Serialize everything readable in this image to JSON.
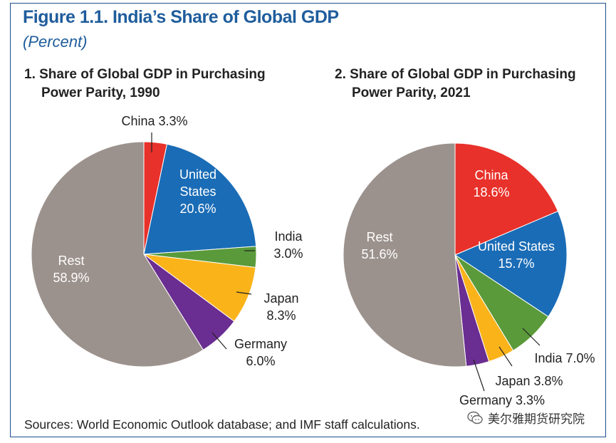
{
  "figure": {
    "title": "Figure 1.1. India’s Share of Global GDP",
    "subtitle": "(Percent)",
    "sources": "Sources: World Economic Outlook database; and IMF staff calculations.",
    "watermark": "美尔雅期货研究院"
  },
  "colors": {
    "china": "#e8312a",
    "united_states": "#1a6cb6",
    "india": "#5a9a3a",
    "japan": "#fbb31a",
    "germany": "#6a2d91",
    "rest": "#9c928d",
    "title": "#1f5d9c"
  },
  "chart_data": [
    {
      "type": "pie",
      "title": "1. Share of Global GDP in Purchasing Power Parity, 1990",
      "title_lines": [
        "1. Share of Global GDP in Purchasing",
        "Power Parity, 1990"
      ],
      "slices": [
        {
          "name": "China",
          "value": 3.3,
          "label_lines": [
            "China 3.3%"
          ],
          "color": "#e8312a"
        },
        {
          "name": "United States",
          "value": 20.6,
          "label_lines": [
            "United",
            "States",
            "20.6%"
          ],
          "color": "#1a6cb6"
        },
        {
          "name": "India",
          "value": 3.0,
          "label_lines": [
            "India",
            "3.0%"
          ],
          "color": "#5a9a3a"
        },
        {
          "name": "Japan",
          "value": 8.3,
          "label_lines": [
            "Japan",
            "8.3%"
          ],
          "color": "#fbb31a"
        },
        {
          "name": "Germany",
          "value": 6.0,
          "label_lines": [
            "Germany",
            "6.0%"
          ],
          "color": "#6a2d91"
        },
        {
          "name": "Rest",
          "value": 58.9,
          "label_lines": [
            "Rest",
            "58.9%"
          ],
          "color": "#9c928d"
        }
      ]
    },
    {
      "type": "pie",
      "title": "2. Share of Global GDP in Purchasing Power Parity, 2021",
      "title_lines": [
        "2. Share of Global GDP in Purchasing",
        "Power Parity, 2021"
      ],
      "slices": [
        {
          "name": "China",
          "value": 18.6,
          "label_lines": [
            "China",
            "18.6%"
          ],
          "color": "#e8312a"
        },
        {
          "name": "United States",
          "value": 15.7,
          "label_lines": [
            "United States",
            "15.7%"
          ],
          "color": "#1a6cb6"
        },
        {
          "name": "India",
          "value": 7.0,
          "label_lines": [
            "India 7.0%"
          ],
          "color": "#5a9a3a"
        },
        {
          "name": "Japan",
          "value": 3.8,
          "label_lines": [
            "Japan 3.8%"
          ],
          "color": "#fbb31a"
        },
        {
          "name": "Germany",
          "value": 3.3,
          "label_lines": [
            "Germany 3.3%"
          ],
          "color": "#6a2d91"
        },
        {
          "name": "Rest",
          "value": 51.6,
          "label_lines": [
            "Rest",
            "51.6%"
          ],
          "color": "#9c928d"
        }
      ]
    }
  ]
}
